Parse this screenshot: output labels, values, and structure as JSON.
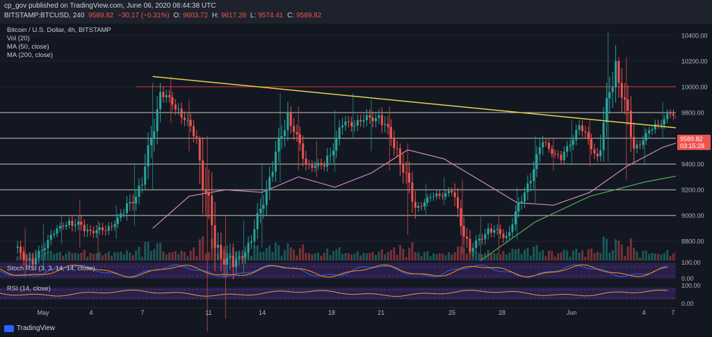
{
  "header": {
    "published": "cp_gov published on TradingView.com, June 06, 2020 08:44:38 UTC",
    "ohlc": [
      {
        "k": "BITSTAMP:BTCUSD, 240",
        "v": "9589.82"
      },
      {
        "k": "",
        "v": "−30.17 (−0.31%)"
      },
      {
        "k": "O:",
        "v": "9603.72"
      },
      {
        "k": "H:",
        "v": "9617.28"
      },
      {
        "k": "L:",
        "v": "9574.41"
      },
      {
        "k": "C:",
        "v": "9589.82"
      }
    ]
  },
  "legend": {
    "symbol": "Bitcoin / U.S. Dollar, 4h, BITSTAMP",
    "vol": "Vol (20)",
    "ma50": "MA (50, close)",
    "ma200": "MA (200, close)",
    "stoch": "Stoch RSI (3, 3, 14, 14, close)",
    "rsi": "RSI (14, close)"
  },
  "logo": {
    "text": "TradingView"
  },
  "chart_data": {
    "type": "candlestick",
    "price_axis": {
      "ylim": [
        8650,
        10480
      ],
      "ticks": [
        "8800.00",
        "9000.00",
        "9200.00",
        "9400.00",
        "9600.00",
        "9800.00",
        "10000.00",
        "10200.00",
        "10400.00"
      ]
    },
    "x_ticks": [
      "May",
      "4",
      "7",
      "11",
      "14",
      "18",
      "21",
      "25",
      "28",
      "Jun",
      "4",
      "7"
    ],
    "last_price": {
      "value": "9589.82",
      "countdown": "03:15:28"
    },
    "horizontal_levels": [
      9000,
      9200,
      9400,
      9600,
      9800,
      10000
    ],
    "resistance_level": 10000,
    "trendline": {
      "from": {
        "date": "May 7",
        "price": 10080
      },
      "to": {
        "date": "Jun 6",
        "price": 9660
      }
    },
    "candles": [
      {
        "date": "Apr 30",
        "o": 8750,
        "c": 8620,
        "h": 8900,
        "l": 8520
      },
      {
        "date": "May 1",
        "o": 8620,
        "c": 8850,
        "h": 8930,
        "l": 8580
      },
      {
        "date": "May 2",
        "o": 8850,
        "c": 8960,
        "h": 9000,
        "l": 8780
      },
      {
        "date": "May 3",
        "o": 8960,
        "c": 8890,
        "h": 9120,
        "l": 8750
      },
      {
        "date": "May 4",
        "o": 8890,
        "c": 8880,
        "h": 8960,
        "l": 8650
      },
      {
        "date": "May 5",
        "o": 8880,
        "c": 9020,
        "h": 9080,
        "l": 8820
      },
      {
        "date": "May 6",
        "o": 9020,
        "c": 9240,
        "h": 9400,
        "l": 8920
      },
      {
        "date": "May 7",
        "o": 9240,
        "c": 9960,
        "h": 10030,
        "l": 9200
      },
      {
        "date": "May 8",
        "o": 9960,
        "c": 9830,
        "h": 10080,
        "l": 9720
      },
      {
        "date": "May 9",
        "o": 9830,
        "c": 9600,
        "h": 9900,
        "l": 9500
      },
      {
        "date": "May 10",
        "o": 9600,
        "c": 8750,
        "h": 9620,
        "l": 8100
      },
      {
        "date": "May 11",
        "o": 8750,
        "c": 8600,
        "h": 9000,
        "l": 8200
      },
      {
        "date": "May 12",
        "o": 8600,
        "c": 8800,
        "h": 8960,
        "l": 8550
      },
      {
        "date": "May 13",
        "o": 8800,
        "c": 9300,
        "h": 9400,
        "l": 8750
      },
      {
        "date": "May 14",
        "o": 9300,
        "c": 9800,
        "h": 9950,
        "l": 9260
      },
      {
        "date": "May 15",
        "o": 9800,
        "c": 9400,
        "h": 9850,
        "l": 9350
      },
      {
        "date": "May 16",
        "o": 9400,
        "c": 9380,
        "h": 9580,
        "l": 9300
      },
      {
        "date": "May 17",
        "o": 9380,
        "c": 9700,
        "h": 9820,
        "l": 9340
      },
      {
        "date": "May 18",
        "o": 9700,
        "c": 9730,
        "h": 9950,
        "l": 9600
      },
      {
        "date": "May 19",
        "o": 9730,
        "c": 9780,
        "h": 9900,
        "l": 9500
      },
      {
        "date": "May 20",
        "o": 9780,
        "c": 9520,
        "h": 9850,
        "l": 9350
      },
      {
        "date": "May 21",
        "o": 9520,
        "c": 9060,
        "h": 9560,
        "l": 8850
      },
      {
        "date": "May 22",
        "o": 9060,
        "c": 9150,
        "h": 9250,
        "l": 9000
      },
      {
        "date": "May 23",
        "o": 9150,
        "c": 9180,
        "h": 9300,
        "l": 9080
      },
      {
        "date": "May 24",
        "o": 9180,
        "c": 8720,
        "h": 9280,
        "l": 8700
      },
      {
        "date": "May 25",
        "o": 8720,
        "c": 8900,
        "h": 8990,
        "l": 8650
      },
      {
        "date": "May 26",
        "o": 8900,
        "c": 8840,
        "h": 9010,
        "l": 8700
      },
      {
        "date": "May 27",
        "o": 8840,
        "c": 9180,
        "h": 9220,
        "l": 8810
      },
      {
        "date": "May 28",
        "o": 9180,
        "c": 9570,
        "h": 9620,
        "l": 9100
      },
      {
        "date": "May 29",
        "o": 9570,
        "c": 9430,
        "h": 9600,
        "l": 9350
      },
      {
        "date": "May 30",
        "o": 9430,
        "c": 9700,
        "h": 9740,
        "l": 9400
      },
      {
        "date": "May 31",
        "o": 9700,
        "c": 9460,
        "h": 9740,
        "l": 9380
      },
      {
        "date": "Jun 1",
        "o": 9460,
        "c": 10200,
        "h": 10430,
        "l": 9420
      },
      {
        "date": "Jun 2",
        "o": 10200,
        "c": 9520,
        "h": 10230,
        "l": 9280
      },
      {
        "date": "Jun 3",
        "o": 9520,
        "c": 9670,
        "h": 9690,
        "l": 9400
      },
      {
        "date": "Jun 4",
        "o": 9670,
        "c": 9790,
        "h": 9880,
        "l": 9600
      },
      {
        "date": "Jun 5",
        "o": 9790,
        "c": 9620,
        "h": 9850,
        "l": 9570
      },
      {
        "date": "Jun 6",
        "o": 9620,
        "c": 9590,
        "h": 9650,
        "l": 9570
      }
    ],
    "ma50": [
      {
        "date": "May 7",
        "v": 8900
      },
      {
        "date": "May 9",
        "v": 9150
      },
      {
        "date": "May 11",
        "v": 9200
      },
      {
        "date": "May 13",
        "v": 9180
      },
      {
        "date": "May 15",
        "v": 9300
      },
      {
        "date": "May 17",
        "v": 9220
      },
      {
        "date": "May 19",
        "v": 9330
      },
      {
        "date": "May 21",
        "v": 9510
      },
      {
        "date": "May 23",
        "v": 9440
      },
      {
        "date": "May 25",
        "v": 9270
      },
      {
        "date": "May 27",
        "v": 9100
      },
      {
        "date": "May 29",
        "v": 9080
      },
      {
        "date": "May 31",
        "v": 9180
      },
      {
        "date": "Jun 2",
        "v": 9380
      },
      {
        "date": "Jun 4",
        "v": 9530
      },
      {
        "date": "Jun 6",
        "v": 9620
      }
    ],
    "ma200": [
      {
        "date": "May 25",
        "v": 8650
      },
      {
        "date": "May 28",
        "v": 8950
      },
      {
        "date": "May 31",
        "v": 9150
      },
      {
        "date": "Jun 3",
        "v": 9260
      },
      {
        "date": "Jun 6",
        "v": 9340
      }
    ],
    "rsi_axis_ticks": [
      "100.00",
      "0.00"
    ]
  }
}
